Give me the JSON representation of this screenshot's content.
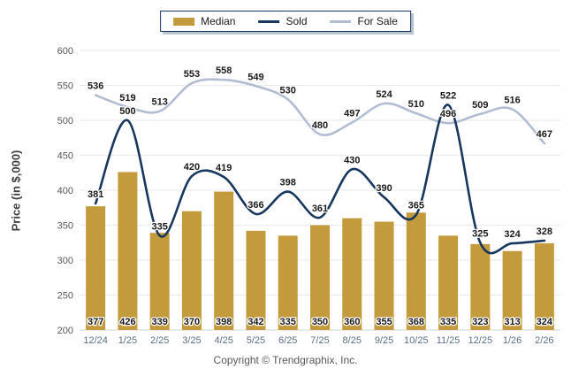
{
  "legend": {
    "items": [
      {
        "label": "Median",
        "swatch": "bar",
        "color": "#C49B3C"
      },
      {
        "label": "Sold",
        "swatch": "line",
        "color": "#17375E"
      },
      {
        "label": "For Sale",
        "swatch": "line",
        "color": "#B2BCD2"
      }
    ]
  },
  "ylabel": "Price (in $,000)",
  "footer": "Copyright © Trendgraphix, Inc.",
  "colors": {
    "bar": "#C49B3C",
    "sold_line": "#17375E",
    "forsale_line": "#B2BCD2",
    "grid": "#EAEAEA",
    "axis": "#D5D5D5",
    "ytick_text": "#595959",
    "xtick_text": "#5B7086",
    "data_label": "#1a1a1a"
  },
  "chart_data": {
    "type": "bar",
    "categories": [
      "12/24",
      "1/25",
      "2/25",
      "3/25",
      "4/25",
      "5/25",
      "6/25",
      "7/25",
      "8/25",
      "9/25",
      "10/25",
      "11/25",
      "12/25",
      "1/26",
      "2/26"
    ],
    "series": [
      {
        "name": "Median",
        "type": "bar",
        "color": "#C49B3C",
        "values": [
          377,
          426,
          339,
          370,
          398,
          342,
          335,
          350,
          360,
          355,
          368,
          335,
          323,
          313,
          324
        ]
      },
      {
        "name": "Sold",
        "type": "line",
        "color": "#17375E",
        "values": [
          381,
          500,
          335,
          420,
          419,
          366,
          398,
          361,
          430,
          390,
          365,
          522,
          325,
          324,
          328
        ]
      },
      {
        "name": "For Sale",
        "type": "line",
        "color": "#B2BCD2",
        "values": [
          536,
          519,
          513,
          553,
          558,
          549,
          530,
          480,
          497,
          524,
          510,
          496,
          509,
          516,
          467
        ]
      }
    ],
    "title": "",
    "xlabel": "",
    "ylabel": "Price (in $,000)",
    "ylim": [
      200,
      600
    ],
    "yticks": [
      200,
      250,
      300,
      350,
      400,
      450,
      500,
      550,
      600
    ],
    "grid": true,
    "legend_position": "top"
  }
}
